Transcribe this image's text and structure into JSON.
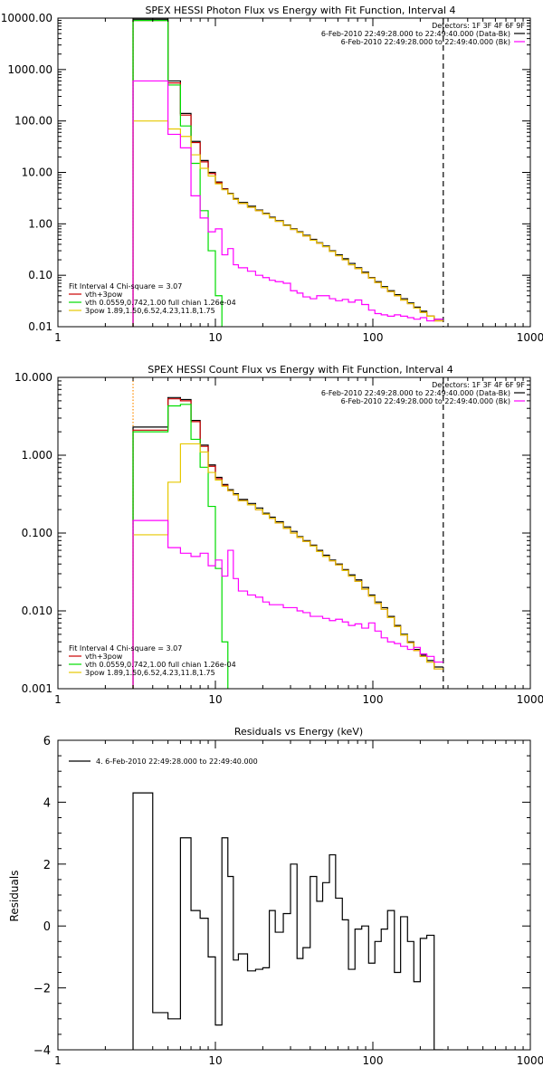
{
  "chart_data": [
    {
      "type": "line",
      "step": true,
      "title": "SPEX HESSI Photon Flux vs Energy with Fit Function, Interval 4",
      "xscale": "log",
      "yscale": "log",
      "xlim": [
        1,
        1000
      ],
      "ylim": [
        0.01,
        10000
      ],
      "x_ticks": [
        "1",
        "10",
        "100",
        "1000"
      ],
      "y_ticks": [
        "0.01",
        "0.10",
        "1.00",
        "10.00",
        "100.00",
        "1000.00",
        "10000.00"
      ],
      "vlines": [
        {
          "x": 3,
          "style": "dotted",
          "color": "#ff8c00"
        },
        {
          "x": 280,
          "style": "dashed",
          "color": "#000000"
        }
      ],
      "legend_top_right": [
        {
          "text": "Detectors: 1F 3F 4F 6F 9F",
          "color": ""
        },
        {
          "text": "6-Feb-2010 22:49:28.000 to 22:49:40.000 (Data-Bk)",
          "color": "#000000"
        },
        {
          "text": "6-Feb-2010 22:49:28.000 to 22:49:40.000 (Bk)",
          "color": "#ff00ff"
        }
      ],
      "legend_bottom_left": [
        {
          "text": "Fit Interval 4    Chi-square = 3.07",
          "color": ""
        },
        {
          "text": "vth+3pow",
          "color": "#cc0000"
        },
        {
          "text": "vth 0.0559,0.742,1.00   full chian 1.26e-04",
          "color": "#00dd00"
        },
        {
          "text": "3pow 1.89,1.50,6.52,4.23,11.8,1.75",
          "color": "#e6c800"
        }
      ],
      "series": [
        {
          "color": "#000000",
          "edges": [
            3,
            4,
            5,
            6,
            7,
            8,
            9,
            10,
            11,
            12,
            13,
            14,
            16,
            18,
            20,
            22,
            24,
            27,
            30,
            33,
            36,
            40,
            44,
            48,
            53,
            58,
            64,
            70,
            77,
            85,
            94,
            103,
            113,
            124,
            137,
            150,
            166,
            182,
            200,
            220,
            245,
            280
          ],
          "values": [
            9500,
            9500,
            600,
            140,
            40,
            17,
            10,
            6.5,
            4.8,
            3.9,
            3.1,
            2.6,
            2.2,
            1.85,
            1.6,
            1.35,
            1.15,
            0.95,
            0.8,
            0.7,
            0.6,
            0.5,
            0.43,
            0.37,
            0.3,
            0.25,
            0.21,
            0.17,
            0.14,
            0.115,
            0.09,
            0.075,
            0.06,
            0.05,
            0.042,
            0.035,
            0.029,
            0.024,
            0.02,
            0.016,
            0.014
          ]
        },
        {
          "color": "#cc0000",
          "edges": [
            3,
            4,
            5,
            6,
            7,
            8,
            9,
            10,
            11,
            12,
            13,
            14,
            16,
            18,
            20,
            22,
            24,
            27,
            30,
            33,
            36,
            40,
            44,
            48,
            53,
            58,
            64,
            70,
            77,
            85,
            94,
            103,
            113,
            124,
            137,
            150,
            166,
            182,
            200,
            220,
            245,
            280
          ],
          "values": [
            9000,
            9000,
            550,
            130,
            38,
            16,
            9.5,
            6.3,
            4.7,
            3.8,
            3.0,
            2.5,
            2.1,
            1.8,
            1.55,
            1.3,
            1.12,
            0.93,
            0.78,
            0.68,
            0.58,
            0.48,
            0.42,
            0.36,
            0.29,
            0.24,
            0.2,
            0.16,
            0.135,
            0.11,
            0.088,
            0.072,
            0.058,
            0.048,
            0.04,
            0.033,
            0.028,
            0.023,
            0.019,
            0.016,
            0.013
          ]
        },
        {
          "color": "#00dd00",
          "edges": [
            3,
            4,
            5,
            6,
            7,
            8,
            9,
            10,
            11,
            12
          ],
          "values": [
            9000,
            9000,
            500,
            80,
            15,
            1.8,
            0.3,
            0.04,
            0.005
          ]
        },
        {
          "color": "#e6c800",
          "edges": [
            3,
            4,
            5,
            6,
            7,
            8,
            9,
            10,
            11,
            12,
            13,
            14,
            16,
            18,
            20,
            22,
            24,
            27,
            30,
            33,
            36,
            40,
            44,
            48,
            53,
            58,
            64,
            70,
            77,
            85,
            94,
            103,
            113,
            124,
            137,
            150,
            166,
            182,
            200,
            220,
            245,
            280
          ],
          "values": [
            100,
            100,
            70,
            50,
            22,
            12,
            8.5,
            6,
            4.6,
            3.8,
            3.0,
            2.5,
            2.1,
            1.8,
            1.55,
            1.3,
            1.12,
            0.93,
            0.78,
            0.68,
            0.58,
            0.48,
            0.42,
            0.36,
            0.29,
            0.24,
            0.2,
            0.16,
            0.135,
            0.11,
            0.088,
            0.072,
            0.058,
            0.048,
            0.04,
            0.033,
            0.028,
            0.023,
            0.019,
            0.016,
            0.013
          ]
        },
        {
          "color": "#ff00ff",
          "edges": [
            3,
            4,
            5,
            6,
            7,
            8,
            9,
            10,
            11,
            12,
            13,
            14,
            16,
            18,
            20,
            22,
            24,
            27,
            30,
            33,
            36,
            40,
            44,
            48,
            53,
            58,
            64,
            70,
            77,
            85,
            94,
            103,
            113,
            124,
            137,
            150,
            166,
            182,
            200,
            220,
            245,
            280
          ],
          "values": [
            600,
            600,
            55,
            30,
            3.5,
            1.3,
            0.7,
            0.8,
            0.25,
            0.33,
            0.16,
            0.14,
            0.12,
            0.1,
            0.09,
            0.08,
            0.075,
            0.07,
            0.05,
            0.045,
            0.038,
            0.035,
            0.04,
            0.04,
            0.035,
            0.032,
            0.034,
            0.03,
            0.033,
            0.027,
            0.021,
            0.018,
            0.017,
            0.016,
            0.017,
            0.016,
            0.015,
            0.014,
            0.015,
            0.013,
            0.014
          ]
        }
      ]
    },
    {
      "type": "line",
      "step": true,
      "title": "SPEX HESSI Count Flux vs Energy with Fit Function, Interval 4",
      "xscale": "log",
      "yscale": "log",
      "xlim": [
        1,
        1000
      ],
      "ylim": [
        0.001,
        10
      ],
      "x_ticks": [
        "1",
        "10",
        "100",
        "1000"
      ],
      "y_ticks": [
        "0.001",
        "0.010",
        "0.100",
        "1.000",
        "10.000"
      ],
      "vlines": [
        {
          "x": 3,
          "style": "dotted",
          "color": "#ff8c00"
        },
        {
          "x": 280,
          "style": "dashed",
          "color": "#000000"
        }
      ],
      "legend_top_right": [
        {
          "text": "Detectors: 1F 3F 4F 6F 9F",
          "color": ""
        },
        {
          "text": "6-Feb-2010 22:49:28.000 to 22:49:40.000 (Data-Bk)",
          "color": "#000000"
        },
        {
          "text": "6-Feb-2010 22:49:28.000 to 22:49:40.000 (Bk)",
          "color": "#ff00ff"
        }
      ],
      "legend_bottom_left": [
        {
          "text": "Fit Interval 4    Chi-square = 3.07",
          "color": ""
        },
        {
          "text": "vth+3pow",
          "color": "#cc0000"
        },
        {
          "text": "vth 0.0559,0.742,1.00   full chian 1.26e-04",
          "color": "#00dd00"
        },
        {
          "text": "3pow 1.89,1.50,6.52,4.23,11.8,1.75",
          "color": "#e6c800"
        }
      ],
      "series": [
        {
          "color": "#000000",
          "edges": [
            3,
            4,
            5,
            6,
            7,
            8,
            9,
            10,
            11,
            12,
            13,
            14,
            16,
            18,
            20,
            22,
            24,
            27,
            30,
            33,
            36,
            40,
            44,
            48,
            53,
            58,
            64,
            70,
            77,
            85,
            94,
            103,
            113,
            124,
            137,
            150,
            166,
            182,
            200,
            220,
            245,
            280
          ],
          "values": [
            2.3,
            2.3,
            5.5,
            5.2,
            2.8,
            1.35,
            0.75,
            0.52,
            0.42,
            0.36,
            0.32,
            0.27,
            0.24,
            0.21,
            0.18,
            0.16,
            0.14,
            0.12,
            0.105,
            0.09,
            0.08,
            0.07,
            0.06,
            0.052,
            0.045,
            0.04,
            0.034,
            0.029,
            0.025,
            0.02,
            0.016,
            0.013,
            0.011,
            0.0085,
            0.0065,
            0.005,
            0.004,
            0.0032,
            0.0027,
            0.0023,
            0.0019
          ]
        },
        {
          "color": "#cc0000",
          "edges": [
            3,
            4,
            5,
            6,
            7,
            8,
            9,
            10,
            11,
            12,
            13,
            14,
            16,
            18,
            20,
            22,
            24,
            27,
            30,
            33,
            36,
            40,
            44,
            48,
            53,
            58,
            64,
            70,
            77,
            85,
            94,
            103,
            113,
            124,
            137,
            150,
            166,
            182,
            200,
            220,
            245,
            280
          ],
          "values": [
            2.1,
            2.1,
            5.3,
            5.0,
            2.7,
            1.3,
            0.72,
            0.5,
            0.41,
            0.35,
            0.31,
            0.26,
            0.23,
            0.2,
            0.175,
            0.155,
            0.135,
            0.115,
            0.1,
            0.088,
            0.078,
            0.068,
            0.058,
            0.05,
            0.044,
            0.039,
            0.033,
            0.028,
            0.024,
            0.019,
            0.0155,
            0.0125,
            0.0105,
            0.0082,
            0.0063,
            0.0049,
            0.0039,
            0.0031,
            0.0026,
            0.0022,
            0.0018
          ]
        },
        {
          "color": "#00dd00",
          "edges": [
            3,
            4,
            5,
            6,
            7,
            8,
            9,
            10,
            11,
            12,
            13
          ],
          "values": [
            2.0,
            2.0,
            4.3,
            4.5,
            1.6,
            0.7,
            0.22,
            0.035,
            0.004,
            0.0009
          ]
        },
        {
          "color": "#e6c800",
          "edges": [
            3,
            4,
            5,
            6,
            7,
            8,
            9,
            10,
            11,
            12,
            13,
            14,
            16,
            18,
            20,
            22,
            24,
            27,
            30,
            33,
            36,
            40,
            44,
            48,
            53,
            58,
            64,
            70,
            77,
            85,
            94,
            103,
            113,
            124,
            137,
            150,
            166,
            182,
            200,
            220,
            245,
            280
          ],
          "values": [
            0.095,
            0.095,
            0.45,
            1.4,
            1.4,
            1.1,
            0.6,
            0.48,
            0.4,
            0.35,
            0.31,
            0.26,
            0.23,
            0.2,
            0.175,
            0.155,
            0.135,
            0.115,
            0.1,
            0.088,
            0.078,
            0.068,
            0.058,
            0.05,
            0.044,
            0.039,
            0.033,
            0.028,
            0.024,
            0.019,
            0.0155,
            0.0125,
            0.0105,
            0.0082,
            0.0063,
            0.0049,
            0.0039,
            0.0031,
            0.0026,
            0.0022,
            0.0018
          ]
        },
        {
          "color": "#ff00ff",
          "edges": [
            3,
            4,
            5,
            6,
            7,
            8,
            9,
            10,
            11,
            12,
            13,
            14,
            16,
            18,
            20,
            22,
            24,
            27,
            30,
            33,
            36,
            40,
            44,
            48,
            53,
            58,
            64,
            70,
            77,
            85,
            94,
            103,
            113,
            124,
            137,
            150,
            166,
            182,
            200,
            220,
            245,
            280
          ],
          "values": [
            0.145,
            0.145,
            0.065,
            0.055,
            0.05,
            0.055,
            0.038,
            0.045,
            0.028,
            0.06,
            0.026,
            0.018,
            0.016,
            0.015,
            0.013,
            0.012,
            0.012,
            0.011,
            0.011,
            0.01,
            0.0095,
            0.0085,
            0.0085,
            0.008,
            0.0075,
            0.0078,
            0.0072,
            0.0065,
            0.0068,
            0.006,
            0.007,
            0.0055,
            0.0045,
            0.004,
            0.0038,
            0.0035,
            0.0032,
            0.0034,
            0.0028,
            0.0026,
            0.0022
          ]
        }
      ]
    },
    {
      "type": "line",
      "step": true,
      "title": "Residuals vs Energy (keV)",
      "ylabel": "Residuals",
      "xscale": "log",
      "yscale": "linear",
      "xlim": [
        1,
        1000
      ],
      "ylim": [
        -4,
        6
      ],
      "x_ticks": [
        "1",
        "10",
        "100",
        "1000"
      ],
      "y_ticks": [
        "−4",
        "−2",
        "0",
        "2",
        "4",
        "6"
      ],
      "legend": "4.  6-Feb-2010 22:49:28.000 to 22:49:40.000",
      "series": [
        {
          "color": "#000000",
          "edges": [
            3,
            4,
            5,
            6,
            7,
            8,
            9,
            10,
            11,
            12,
            13,
            14,
            16,
            18,
            20,
            22,
            24,
            27,
            30,
            33,
            36,
            40,
            44,
            48,
            53,
            58,
            64,
            70,
            77,
            85,
            94,
            103,
            113,
            124,
            137,
            150,
            166,
            182,
            200,
            220,
            245,
            280
          ],
          "values": [
            4.3,
            -2.8,
            -3.0,
            2.85,
            0.5,
            0.25,
            -1.0,
            -3.2,
            2.85,
            1.6,
            -1.1,
            -0.9,
            -1.45,
            -1.4,
            -1.35,
            0.5,
            -0.2,
            0.4,
            2.0,
            -1.05,
            -0.7,
            1.6,
            0.8,
            1.4,
            2.3,
            0.9,
            0.2,
            -1.4,
            -0.1,
            0.0,
            -1.2,
            -0.5,
            -0.1,
            0.5,
            -1.5,
            0.3,
            -0.5,
            -1.8,
            -0.4,
            -0.3,
            -4.0
          ]
        }
      ]
    }
  ]
}
